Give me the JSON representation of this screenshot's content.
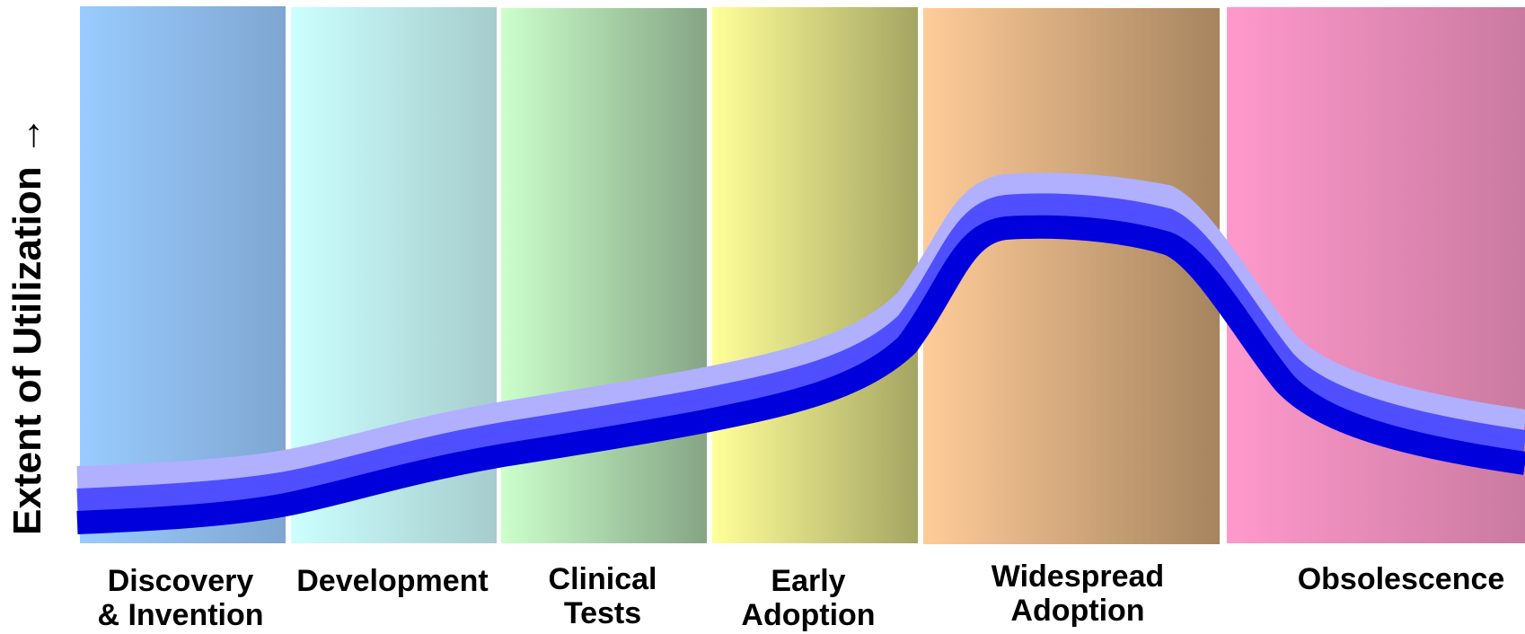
{
  "diagram": {
    "y_axis_label": "Extent of Utilization",
    "y_axis_arrow": "→",
    "stages": [
      {
        "lines": [
          "Discovery",
          "& Invention"
        ],
        "color_from": "#99ccff",
        "color_to": "#7fa6d1"
      },
      {
        "lines": [
          "Development"
        ],
        "color_from": "#ccffff",
        "color_to": "#a6cccc"
      },
      {
        "lines": [
          "Clinical",
          "Tests"
        ],
        "color_from": "#ccffcc",
        "color_to": "#85a585"
      },
      {
        "lines": [
          "Early",
          "Adoption"
        ],
        "color_from": "#ffff99",
        "color_to": "#a5a563"
      },
      {
        "lines": [
          "Widespread",
          "Adoption"
        ],
        "color_from": "#ffcc99",
        "color_to": "#a6845f"
      },
      {
        "lines": [
          "Obsolescence"
        ],
        "color_from": "#ff99cc",
        "color_to": "#c97aa0"
      }
    ],
    "curve_colors": {
      "outer": "#b0b0ff",
      "middle": "#4f4fff",
      "inner": "#0000dd"
    }
  }
}
